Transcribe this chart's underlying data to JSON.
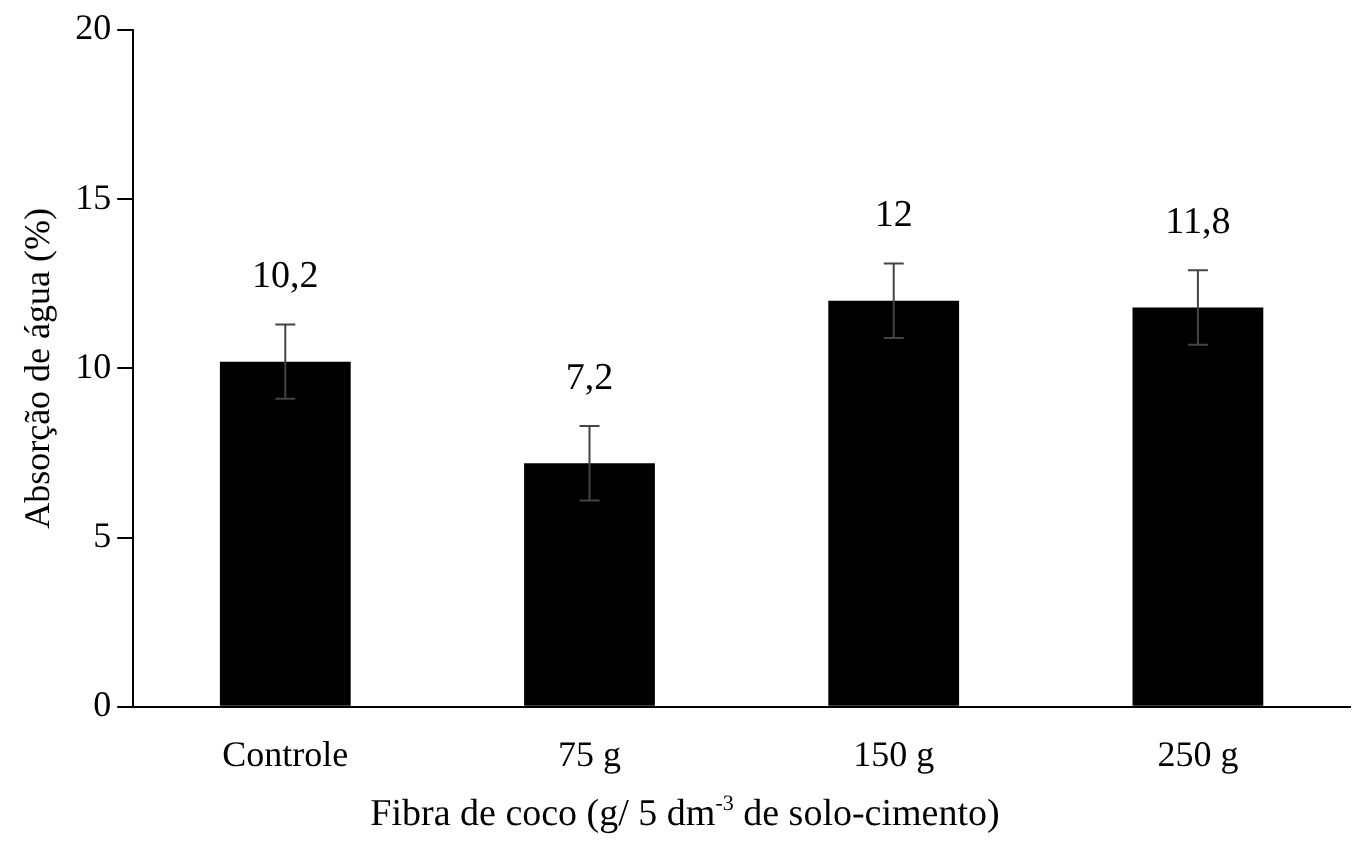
{
  "chart_data": {
    "type": "bar",
    "xlabel": "Fibra de coco (g/ 5 dm$^{-3}$ de  solo-cimento)",
    "ylabel": "Absorção de água (%)",
    "categories": [
      "Controle",
      "75 g",
      "150 g",
      "250 g"
    ],
    "values": [
      10.2,
      7.2,
      12,
      11.8
    ],
    "errors": [
      1.1,
      1.1,
      1.1,
      1.1
    ],
    "value_labels": [
      "10,2",
      "7,2",
      "12",
      "11,8"
    ],
    "color": "#000000",
    "ylim": [
      0,
      20
    ],
    "yticks": [
      0,
      5,
      10,
      15,
      20
    ],
    "grid": false,
    "legend": false
  }
}
